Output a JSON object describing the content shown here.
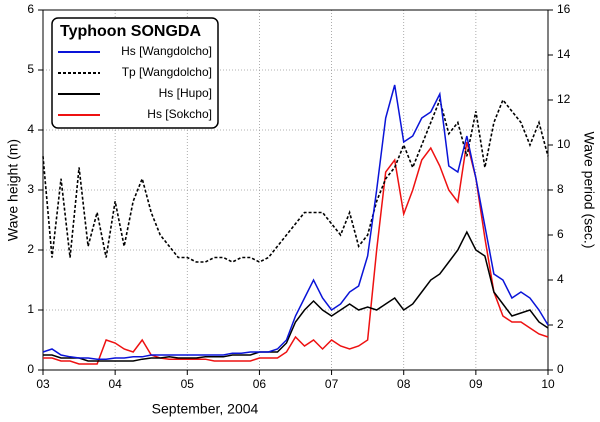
{
  "chart_data": {
    "type": "line",
    "legend_title": "Typhoon SONGDA",
    "xlabel": "September, 2004",
    "ylabel": "Wave height (m)",
    "y2label": "Wave period (sec.)",
    "legend": "upper left",
    "grid": true,
    "x": [
      3,
      3.125,
      3.25,
      3.375,
      3.5,
      3.625,
      3.75,
      3.875,
      4,
      4.125,
      4.25,
      4.375,
      4.5,
      4.625,
      4.75,
      4.875,
      5,
      5.125,
      5.25,
      5.375,
      5.5,
      5.625,
      5.75,
      5.875,
      6,
      6.125,
      6.25,
      6.375,
      6.5,
      6.625,
      6.75,
      6.875,
      7,
      7.125,
      7.25,
      7.375,
      7.5,
      7.625,
      7.75,
      7.875,
      8,
      8.125,
      8.25,
      8.375,
      8.5,
      8.625,
      8.75,
      8.875,
      9,
      9.125,
      9.25,
      9.375,
      9.5,
      9.625,
      9.75,
      9.875,
      10
    ],
    "series": [
      {
        "name": "Hs [Wangdolcho]",
        "color": "#0a14d8",
        "style": "solid",
        "values": [
          0.3,
          0.35,
          0.25,
          0.22,
          0.2,
          0.2,
          0.18,
          0.18,
          0.2,
          0.2,
          0.22,
          0.22,
          0.25,
          0.25,
          0.25,
          0.25,
          0.25,
          0.25,
          0.25,
          0.25,
          0.25,
          0.28,
          0.28,
          0.3,
          0.3,
          0.3,
          0.35,
          0.5,
          0.9,
          1.2,
          1.5,
          1.2,
          1.0,
          1.1,
          1.3,
          1.4,
          1.9,
          3.0,
          4.2,
          4.75,
          3.8,
          3.9,
          4.2,
          4.3,
          4.6,
          3.4,
          3.3,
          3.9,
          3.2,
          2.4,
          1.6,
          1.5,
          1.2,
          1.3,
          1.2,
          1.0,
          0.75
        ]
      },
      {
        "name": "Tp [Wangdolcho]",
        "color": "#000000",
        "style": "dotted",
        "axis": "y2",
        "values": [
          9.5,
          5,
          8.5,
          5,
          9,
          5.5,
          7,
          5,
          7.5,
          5.5,
          7.5,
          8.5,
          7,
          6,
          5.5,
          5,
          5,
          4.8,
          4.8,
          5,
          5,
          4.8,
          5,
          5,
          4.8,
          5,
          5.5,
          6,
          6.5,
          7,
          7,
          7,
          6.5,
          6,
          7,
          5.5,
          6,
          7.5,
          8.5,
          9,
          10,
          9,
          10,
          11,
          12,
          10.5,
          11,
          9.5,
          11.5,
          9,
          11,
          12,
          11.5,
          11,
          10,
          11,
          9.5
        ]
      },
      {
        "name": "Hs [Hupo]",
        "color": "#000000",
        "style": "solid",
        "values": [
          0.25,
          0.25,
          0.2,
          0.2,
          0.2,
          0.15,
          0.15,
          0.15,
          0.15,
          0.15,
          0.15,
          0.18,
          0.2,
          0.2,
          0.22,
          0.2,
          0.2,
          0.2,
          0.22,
          0.22,
          0.22,
          0.25,
          0.25,
          0.25,
          0.3,
          0.3,
          0.3,
          0.45,
          0.8,
          1.0,
          1.15,
          1.0,
          0.9,
          1.0,
          1.1,
          1.0,
          1.05,
          1.0,
          1.1,
          1.2,
          1.0,
          1.1,
          1.3,
          1.5,
          1.6,
          1.8,
          2.0,
          2.3,
          2.0,
          1.9,
          1.3,
          1.1,
          0.9,
          0.95,
          1.0,
          0.8,
          0.7
        ]
      },
      {
        "name": "Hs [Sokcho]",
        "color": "#ee1111",
        "style": "solid",
        "values": [
          0.2,
          0.2,
          0.15,
          0.15,
          0.1,
          0.1,
          0.1,
          0.5,
          0.45,
          0.35,
          0.3,
          0.5,
          0.25,
          0.2,
          0.18,
          0.18,
          0.18,
          0.18,
          0.18,
          0.15,
          0.15,
          0.15,
          0.15,
          0.15,
          0.2,
          0.2,
          0.2,
          0.3,
          0.55,
          0.4,
          0.5,
          0.35,
          0.5,
          0.4,
          0.35,
          0.4,
          0.5,
          2.0,
          3.3,
          3.5,
          2.6,
          3.0,
          3.5,
          3.7,
          3.4,
          3.0,
          2.8,
          3.8,
          3.2,
          2.2,
          1.3,
          0.9,
          0.8,
          0.8,
          0.7,
          0.6,
          0.55
        ]
      }
    ],
    "xlim": [
      3,
      10
    ],
    "xticks": [
      {
        "value": 3,
        "label": "03"
      },
      {
        "value": 4,
        "label": "04"
      },
      {
        "value": 5,
        "label": "05"
      },
      {
        "value": 6,
        "label": "06"
      },
      {
        "value": 7,
        "label": "07"
      },
      {
        "value": 8,
        "label": "08"
      },
      {
        "value": 9,
        "label": "09"
      },
      {
        "value": 10,
        "label": "10"
      }
    ],
    "ylim": [
      0,
      6
    ],
    "yticks": [
      0,
      1,
      2,
      3,
      4,
      5,
      6
    ],
    "y2lim": [
      0,
      16
    ],
    "y2ticks": [
      0,
      2,
      4,
      6,
      8,
      10,
      12,
      14,
      16
    ]
  }
}
